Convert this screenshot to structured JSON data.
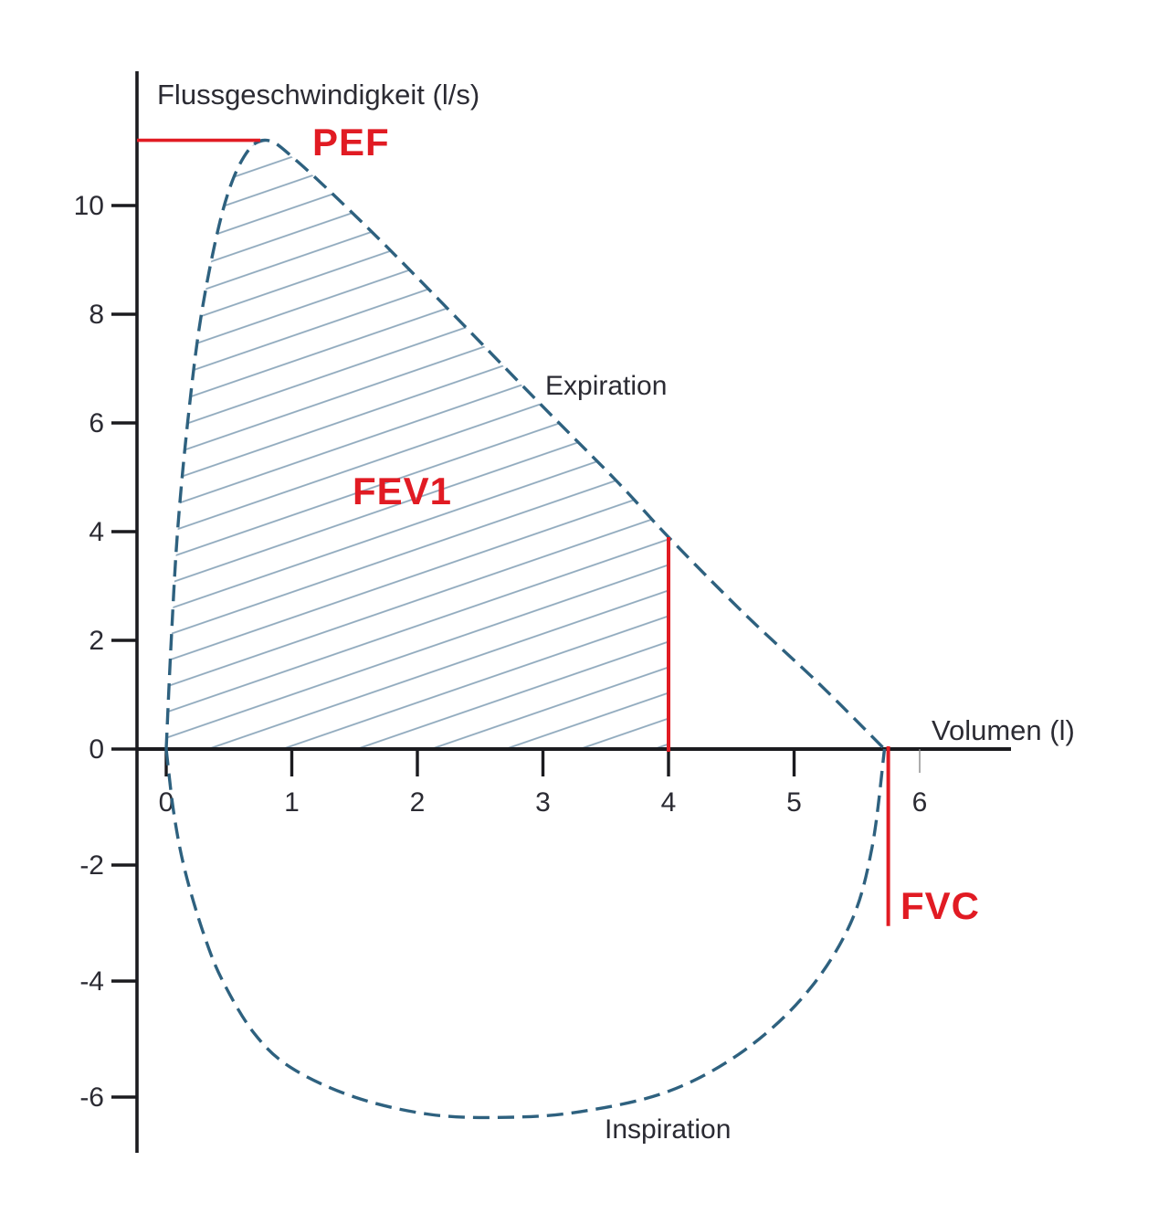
{
  "figure": {
    "y_axis_title": "Flussgeschwindigkeit (l/s)",
    "x_axis_title": "Volumen (l)",
    "curve_labels": {
      "expiration": "Expiration",
      "inspiration": "Inspiration"
    },
    "marker_labels": {
      "pef": "PEF",
      "fev1": "FEV1",
      "fvc": "FVC"
    }
  },
  "colors": {
    "marker_red": "#e11b23",
    "curve_blue": "#2e617f",
    "hatch_blue": "#8fa9bd",
    "axis_black": "#1b1b1f",
    "label_dark": "#2b2b33",
    "minor_tick_gray": "#8a8a8a"
  },
  "chart_data": {
    "type": "line",
    "title": "Flussgeschwindigkeit (l/s)",
    "xlabel": "Volumen (l)",
    "ylabel": "Flussgeschwindigkeit (l/s)",
    "x_unit": "l",
    "y_unit": "l/s",
    "grid": false,
    "x_ticks": [
      0,
      1,
      2,
      3,
      4,
      5,
      6
    ],
    "y_ticks": [
      10,
      8,
      6,
      4,
      2,
      0,
      -2,
      -4,
      -6
    ],
    "xlim": [
      -0.25,
      6.8
    ],
    "ylim": [
      -7.6,
      12.5
    ],
    "series": [
      {
        "name": "Expiration",
        "line_style": "dashed",
        "points": [
          [
            0,
            0
          ],
          [
            0.04,
            2
          ],
          [
            0.09,
            4
          ],
          [
            0.17,
            6
          ],
          [
            0.28,
            8
          ],
          [
            0.45,
            9.9
          ],
          [
            0.62,
            10.9
          ],
          [
            0.8,
            11.2
          ],
          [
            1.05,
            10.8
          ],
          [
            1.6,
            9.6
          ],
          [
            2.2,
            8.2
          ],
          [
            3.0,
            6.3
          ],
          [
            3.6,
            4.9
          ],
          [
            4.0,
            3.9
          ],
          [
            4.6,
            2.5
          ],
          [
            5.2,
            1.2
          ],
          [
            5.72,
            0
          ]
        ]
      },
      {
        "name": "Inspiration",
        "line_style": "dashed",
        "points": [
          [
            0,
            0
          ],
          [
            0.06,
            -1.1
          ],
          [
            0.15,
            -2.1
          ],
          [
            0.3,
            -3.2
          ],
          [
            0.45,
            -4
          ],
          [
            0.7,
            -4.9
          ],
          [
            1.0,
            -5.5
          ],
          [
            1.5,
            -6.0
          ],
          [
            2.1,
            -6.3
          ],
          [
            2.7,
            -6.35
          ],
          [
            3.3,
            -6.25
          ],
          [
            4.0,
            -5.9
          ],
          [
            4.6,
            -5.2
          ],
          [
            5.1,
            -4.2
          ],
          [
            5.45,
            -3.0
          ],
          [
            5.62,
            -1.7
          ],
          [
            5.72,
            0
          ]
        ]
      }
    ],
    "markers": {
      "pef": {
        "flow_l_s": 11.2,
        "at_volume_l": 0.8
      },
      "fev1": {
        "volume_l": 4.0,
        "flow_at_curve_l_s": 3.9
      },
      "fvc": {
        "volume_l": 5.75,
        "marker_bottom_flow_l_s": -3.05
      }
    },
    "hatched_region": {
      "description": "FEV1 area under expiration curve",
      "from_volume_l": 0,
      "to_volume_l": 4
    }
  }
}
